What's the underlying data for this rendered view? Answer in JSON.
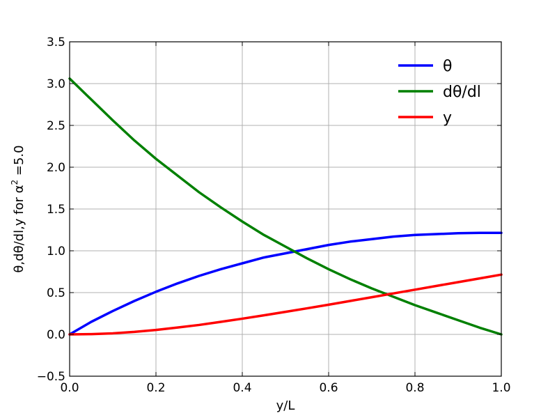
{
  "chart_data": {
    "type": "line",
    "title": "",
    "xlabel": "y/L",
    "ylabel": "θ,dθ/dl,y for α² =5.0",
    "ylabel_parts": [
      "θ,dθ/dl,y for α",
      "2",
      " =5.0"
    ],
    "xlim": [
      0.0,
      1.0
    ],
    "ylim": [
      -0.5,
      3.5
    ],
    "xticks": [
      "0.0",
      "0.2",
      "0.4",
      "0.6",
      "0.8",
      "1.0"
    ],
    "yticks": [
      "−0.5",
      "0.0",
      "0.5",
      "1.0",
      "1.5",
      "2.0",
      "2.5",
      "3.0",
      "3.5"
    ],
    "grid": true,
    "legend_position": "top-right",
    "series": [
      {
        "name": "θ",
        "color": "#0000ff",
        "x": [
          0.0,
          0.05,
          0.1,
          0.15,
          0.2,
          0.25,
          0.3,
          0.35,
          0.4,
          0.45,
          0.5,
          0.55,
          0.6,
          0.65,
          0.7,
          0.75,
          0.8,
          0.85,
          0.9,
          0.95,
          1.0
        ],
        "y": [
          0.0,
          0.15,
          0.28,
          0.4,
          0.51,
          0.61,
          0.7,
          0.78,
          0.85,
          0.92,
          0.97,
          1.02,
          1.07,
          1.11,
          1.14,
          1.17,
          1.19,
          1.2,
          1.21,
          1.215,
          1.215
        ]
      },
      {
        "name": "dθ/dl",
        "color": "#008000",
        "x": [
          0.0,
          0.05,
          0.1,
          0.15,
          0.2,
          0.25,
          0.3,
          0.35,
          0.4,
          0.45,
          0.5,
          0.55,
          0.6,
          0.65,
          0.7,
          0.75,
          0.8,
          0.85,
          0.9,
          0.95,
          1.0
        ],
        "y": [
          3.06,
          2.81,
          2.56,
          2.32,
          2.1,
          1.9,
          1.7,
          1.52,
          1.35,
          1.19,
          1.05,
          0.91,
          0.78,
          0.66,
          0.55,
          0.45,
          0.35,
          0.26,
          0.17,
          0.08,
          0.0
        ]
      },
      {
        "name": "y",
        "color": "#ff0000",
        "x": [
          0.0,
          0.05,
          0.1,
          0.15,
          0.2,
          0.25,
          0.3,
          0.35,
          0.4,
          0.45,
          0.5,
          0.55,
          0.6,
          0.65,
          0.7,
          0.75,
          0.8,
          0.85,
          0.9,
          0.95,
          1.0
        ],
        "y": [
          0.0,
          0.003,
          0.013,
          0.03,
          0.053,
          0.082,
          0.113,
          0.15,
          0.188,
          0.228,
          0.27,
          0.312,
          0.355,
          0.4,
          0.445,
          0.49,
          0.535,
          0.58,
          0.625,
          0.67,
          0.715
        ]
      }
    ]
  }
}
